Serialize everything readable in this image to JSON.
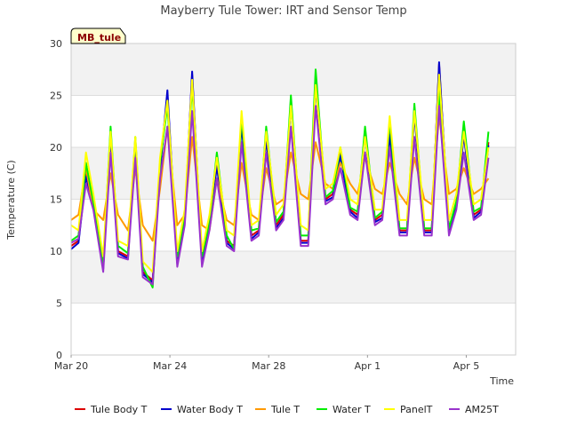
{
  "chart_data": {
    "type": "line",
    "title": "Mayberry Tule Tower: IRT and Sensor Temp",
    "xlabel": "Time",
    "ylabel": "Temperature (C)",
    "badge": "MB_tule",
    "xlim_days": [
      0,
      18
    ],
    "ylim": [
      0,
      30
    ],
    "xticks": [
      {
        "day": 0,
        "label": "Mar 20"
      },
      {
        "day": 4,
        "label": "Mar 24"
      },
      {
        "day": 8,
        "label": "Mar 28"
      },
      {
        "day": 12,
        "label": "Apr 1"
      },
      {
        "day": 16,
        "label": "Apr 5"
      }
    ],
    "yticks": [
      0,
      5,
      10,
      15,
      20,
      25,
      30
    ],
    "x_days": [
      0,
      0.3,
      0.6,
      0.9,
      1.3,
      1.6,
      1.9,
      2.3,
      2.6,
      2.9,
      3.3,
      3.6,
      3.9,
      4.3,
      4.6,
      4.9,
      5.3,
      5.6,
      5.9,
      6.3,
      6.6,
      6.9,
      7.3,
      7.6,
      7.9,
      8.3,
      8.6,
      8.9,
      9.3,
      9.6,
      9.9,
      10.3,
      10.6,
      10.9,
      11.3,
      11.6,
      11.9,
      12.3,
      12.6,
      12.9,
      13.3,
      13.6,
      13.9,
      14.3,
      14.6,
      14.9,
      15.3,
      15.6,
      15.9,
      16.3,
      16.6,
      16.9
    ],
    "series": [
      {
        "name": "Tule Body T",
        "color": "#dd0000",
        "values": [
          10.5,
          11.0,
          17.5,
          14.5,
          8.5,
          21.0,
          10.0,
          9.5,
          20.5,
          8.0,
          7.2,
          18.0,
          25.0,
          9.0,
          13.0,
          27.0,
          9.0,
          12.5,
          18.5,
          11.0,
          10.5,
          22.5,
          11.5,
          12.0,
          21.0,
          12.5,
          13.5,
          24.5,
          11.0,
          11.0,
          26.5,
          15.0,
          15.5,
          19.5,
          14.0,
          13.5,
          21.5,
          13.0,
          13.5,
          21.5,
          12.0,
          12.0,
          23.5,
          12.0,
          12.0,
          28.0,
          12.0,
          14.5,
          21.5,
          13.5,
          14.0,
          20.5
        ]
      },
      {
        "name": "Water Body T",
        "color": "#0000cc",
        "values": [
          10.2,
          10.8,
          17.2,
          14.2,
          8.3,
          20.8,
          9.8,
          9.3,
          20.2,
          7.8,
          7.0,
          17.8,
          25.5,
          8.8,
          12.8,
          27.3,
          8.8,
          12.2,
          18.2,
          10.8,
          10.2,
          22.2,
          11.2,
          11.8,
          20.8,
          12.2,
          13.2,
          24.2,
          10.8,
          10.8,
          26.0,
          14.8,
          15.2,
          19.2,
          13.8,
          13.2,
          21.2,
          12.8,
          13.2,
          21.2,
          11.8,
          11.8,
          23.2,
          11.8,
          11.8,
          28.2,
          11.8,
          14.2,
          21.2,
          13.2,
          13.8,
          20.2
        ]
      },
      {
        "name": "Tule T",
        "color": "#ff9900",
        "values": [
          13.0,
          13.5,
          18.0,
          14.0,
          13.0,
          17.5,
          13.5,
          12.0,
          18.0,
          12.5,
          11.0,
          16.0,
          22.0,
          12.5,
          13.5,
          21.0,
          12.5,
          12.0,
          17.0,
          13.0,
          12.5,
          18.5,
          13.5,
          13.0,
          18.0,
          14.5,
          15.0,
          19.5,
          15.5,
          15.0,
          20.5,
          16.5,
          16.0,
          18.5,
          16.5,
          15.5,
          19.0,
          16.0,
          15.5,
          18.5,
          15.5,
          14.5,
          19.0,
          15.0,
          14.5,
          23.0,
          15.5,
          16.0,
          18.0,
          15.5,
          16.0,
          17.0
        ]
      },
      {
        "name": "Water T",
        "color": "#00ee00",
        "values": [
          11.0,
          11.5,
          18.5,
          14.8,
          8.8,
          22.0,
          10.5,
          9.8,
          21.0,
          8.5,
          6.5,
          18.5,
          24.0,
          9.5,
          13.5,
          26.0,
          9.5,
          12.8,
          19.5,
          11.5,
          10.2,
          23.0,
          12.0,
          12.2,
          22.0,
          12.8,
          13.8,
          25.0,
          11.5,
          11.5,
          27.5,
          15.2,
          15.8,
          20.0,
          14.2,
          13.8,
          22.0,
          13.2,
          13.8,
          22.5,
          12.2,
          12.2,
          24.2,
          12.2,
          12.2,
          25.5,
          12.2,
          14.8,
          22.5,
          13.8,
          14.2,
          21.5
        ]
      },
      {
        "name": "PanelT",
        "color": "#ffff00",
        "values": [
          12.5,
          12.0,
          19.5,
          15.5,
          9.5,
          21.5,
          11.0,
          10.5,
          21.0,
          9.0,
          8.0,
          19.0,
          24.5,
          10.0,
          14.0,
          26.5,
          10.0,
          13.5,
          19.0,
          12.0,
          11.5,
          23.5,
          12.5,
          13.0,
          21.5,
          13.5,
          14.5,
          24.0,
          12.5,
          12.0,
          26.0,
          16.0,
          16.5,
          20.0,
          15.0,
          14.5,
          21.0,
          14.0,
          14.0,
          23.0,
          13.0,
          13.0,
          23.5,
          13.0,
          13.0,
          27.0,
          13.0,
          15.5,
          21.5,
          14.5,
          15.0,
          20.0
        ]
      },
      {
        "name": "AM25T",
        "color": "#9933cc",
        "values": [
          10.8,
          11.2,
          16.5,
          14.0,
          8.0,
          19.5,
          9.5,
          9.2,
          19.0,
          7.5,
          6.8,
          17.0,
          22.0,
          8.5,
          12.5,
          23.5,
          8.5,
          12.0,
          17.0,
          10.5,
          10.0,
          20.5,
          11.0,
          11.5,
          19.5,
          12.0,
          13.0,
          22.0,
          10.5,
          10.5,
          24.0,
          14.5,
          15.0,
          18.0,
          13.5,
          13.0,
          19.5,
          12.5,
          13.0,
          20.0,
          11.5,
          11.5,
          21.0,
          11.5,
          11.5,
          24.0,
          11.5,
          14.0,
          19.5,
          13.0,
          13.5,
          19.0
        ]
      }
    ]
  }
}
